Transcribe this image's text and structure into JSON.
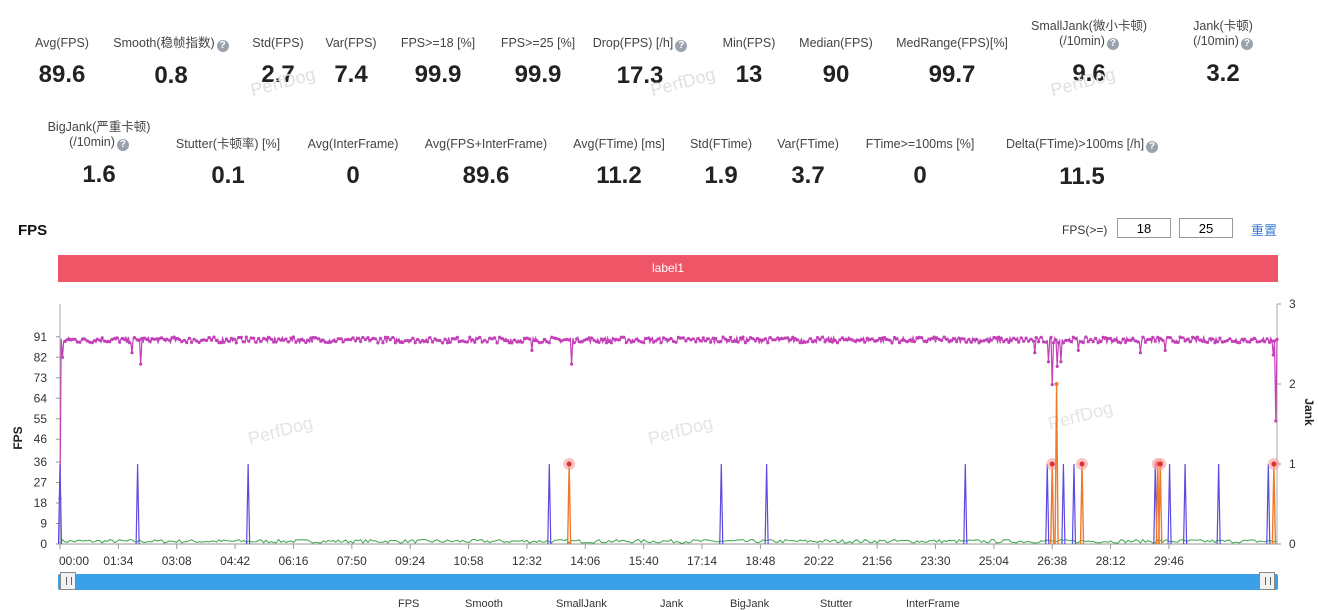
{
  "metrics_row1": [
    {
      "label": "Avg(FPS)",
      "value": "89.6",
      "help": false
    },
    {
      "label": "Smooth(稳帧指数)",
      "value": "0.8",
      "help": true
    },
    {
      "label": "Std(FPS)",
      "value": "2.7",
      "help": false
    },
    {
      "label": "Var(FPS)",
      "value": "7.4",
      "help": false
    },
    {
      "label": "FPS>=18 [%]",
      "value": "99.9",
      "help": false
    },
    {
      "label": "FPS>=25 [%]",
      "value": "99.9",
      "help": false
    },
    {
      "label": "Drop(FPS) [/h]",
      "value": "17.3",
      "help": true
    },
    {
      "label": "Min(FPS)",
      "value": "13",
      "help": false
    },
    {
      "label": "Median(FPS)",
      "value": "90",
      "help": false
    },
    {
      "label": "MedRange(FPS)[%]",
      "value": "99.7",
      "help": false
    },
    {
      "label": "SmallJank(微小卡顿)",
      "label2": "(/10min)",
      "value": "9.6",
      "help": true
    },
    {
      "label": "Jank(卡顿)",
      "label2": "(/10min)",
      "value": "3.2",
      "help": true
    }
  ],
  "metrics_row2": [
    {
      "label": "BigJank(严重卡顿)",
      "label2": "(/10min)",
      "value": "1.6",
      "help": true
    },
    {
      "label": "Stutter(卡顿率) [%]",
      "value": "0.1",
      "help": false
    },
    {
      "label": "Avg(InterFrame)",
      "value": "0",
      "help": false
    },
    {
      "label": "Avg(FPS+InterFrame)",
      "value": "89.6",
      "help": false
    },
    {
      "label": "Avg(FTime) [ms]",
      "value": "11.2",
      "help": false
    },
    {
      "label": "Std(FTime)",
      "value": "1.9",
      "help": false
    },
    {
      "label": "Var(FTime)",
      "value": "3.7",
      "help": false
    },
    {
      "label": "FTime>=100ms [%]",
      "value": "0",
      "help": false
    },
    {
      "label": "Delta(FTime)>100ms [/h]",
      "value": "11.5",
      "help": true
    }
  ],
  "watermark": "PerfDog",
  "section_title": "FPS",
  "threshold": {
    "label": "FPS(>=)",
    "low": "18",
    "high": "25",
    "reset": "重置"
  },
  "label_bar": "label1",
  "legend": [
    "FPS",
    "Smooth",
    "SmallJank",
    "Jank",
    "BigJank",
    "Stutter",
    "InterFrame"
  ],
  "colors": {
    "fps": "#c341b8",
    "jank": "#5b4be0",
    "bigjank": "#f07a2a",
    "smooth": "#3aa64a",
    "labelbar": "#ee5566",
    "slider": "#3aa0e8"
  },
  "chart_data": {
    "type": "line",
    "xlabel": "",
    "ylabel": "FPS",
    "y2label": "Jank",
    "xticks": [
      "00:00",
      "01:34",
      "03:08",
      "04:42",
      "06:16",
      "07:50",
      "09:24",
      "10:58",
      "12:32",
      "14:06",
      "15:40",
      "17:14",
      "18:48",
      "20:22",
      "21:56",
      "23:30",
      "25:04",
      "26:38",
      "28:12",
      "29:46"
    ],
    "yticks": [
      0,
      9,
      18,
      27,
      36,
      46,
      55,
      64,
      73,
      82,
      91
    ],
    "ylim": [
      0,
      101
    ],
    "y2ticks": [
      0,
      1,
      2,
      3
    ],
    "y2lim": [
      0,
      3
    ],
    "x_range_seconds": [
      0,
      1960
    ],
    "fps_baseline": 89.6,
    "fps_dips": [
      {
        "t": 3,
        "fps": 82
      },
      {
        "t": 130,
        "fps": 79
      },
      {
        "t": 115,
        "fps": 84
      },
      {
        "t": 823,
        "fps": 79
      },
      {
        "t": 760,
        "fps": 85
      },
      {
        "t": 1570,
        "fps": 84
      },
      {
        "t": 1592,
        "fps": 80
      },
      {
        "t": 1598,
        "fps": 70
      },
      {
        "t": 1605,
        "fps": 78
      },
      {
        "t": 1612,
        "fps": 80
      },
      {
        "t": 1640,
        "fps": 85
      },
      {
        "t": 1740,
        "fps": 84
      },
      {
        "t": 1780,
        "fps": 85
      },
      {
        "t": 1953,
        "fps": 83
      },
      {
        "t": 1957,
        "fps": 54
      }
    ],
    "jank_events": [
      {
        "t": 0,
        "value": 1
      },
      {
        "t": 125,
        "value": 1
      },
      {
        "t": 303,
        "value": 1
      },
      {
        "t": 788,
        "value": 1
      },
      {
        "t": 1065,
        "value": 1
      },
      {
        "t": 1138,
        "value": 1
      },
      {
        "t": 1458,
        "value": 1
      },
      {
        "t": 1590,
        "value": 1
      },
      {
        "t": 1616,
        "value": 1
      },
      {
        "t": 1633,
        "value": 1
      },
      {
        "t": 1764,
        "value": 1
      },
      {
        "t": 1787,
        "value": 1
      },
      {
        "t": 1812,
        "value": 1
      },
      {
        "t": 1866,
        "value": 1
      },
      {
        "t": 1946,
        "value": 1
      }
    ],
    "bigjank_events": [
      {
        "t": 820,
        "value": 1
      },
      {
        "t": 1598,
        "value": 1
      },
      {
        "t": 1605,
        "value": 2
      },
      {
        "t": 1646,
        "value": 1
      },
      {
        "t": 1768,
        "value": 1
      },
      {
        "t": 1772,
        "value": 1
      },
      {
        "t": 1955,
        "value": 1
      }
    ]
  }
}
